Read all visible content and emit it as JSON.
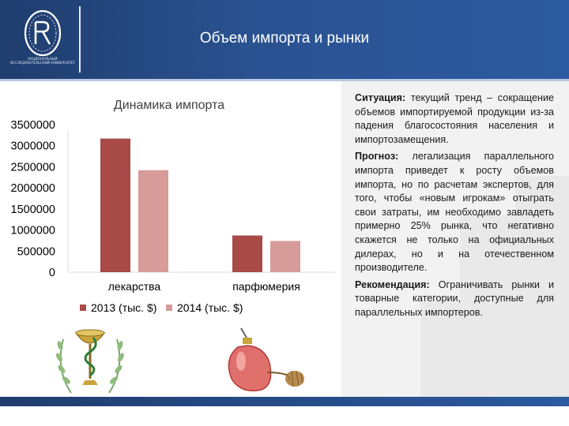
{
  "slide": {
    "title": "Объем импорта и рынки",
    "logo_caption": "НАЦИОНАЛЬНЫЙ ИССЛЕДОВАТЕЛЬСКИЙ УНИВЕРСИТЕТ"
  },
  "chart_data": {
    "type": "bar",
    "title": "Динамика импорта",
    "categories": [
      "лекарства",
      "парфюмерия"
    ],
    "series": [
      {
        "name": "2013 (тыс. $)",
        "color": "#a84a48",
        "values": [
          3170000,
          870000
        ]
      },
      {
        "name": "2014 (тыс. $)",
        "color": "#d79b9a",
        "values": [
          2420000,
          740000
        ]
      }
    ],
    "yticks": [
      "3500000",
      "3000000",
      "2500000",
      "2000000",
      "1500000",
      "1000000",
      "500000",
      "0"
    ],
    "ylim": [
      0,
      3500000
    ],
    "grid": false,
    "legend": "bottom"
  },
  "text": {
    "situation_label": "Ситуация:",
    "situation_body": " текущий тренд – сокращение объемов импортируемой продукции из-за падения благосостояния населения и импортозамещения.",
    "forecast_label": "Прогноз:",
    "forecast_body": " легализация параллельного импорта приведет к росту объемов импорта, но по расчетам экспертов, для того, чтобы «новым игрокам» отыграть свои затраты, им необходимо завладеть примерно 25% рынка, что негативно скажется не только на официальных дилерах, но и на отечественном производителе.",
    "recommendation_label": "Рекомендация:",
    "recommendation_body": " Ограничивать рынки и товарные категории, доступные для параллельных импортеров."
  },
  "icons": {
    "logo": "university-logo-icon",
    "pharmacy": "pharmacy-bowl-icon",
    "perfume": "perfume-bottle-icon"
  },
  "colors": {
    "header": "#2a5291",
    "bar_2013": "#a84a48",
    "bar_2014": "#d79b9a"
  }
}
